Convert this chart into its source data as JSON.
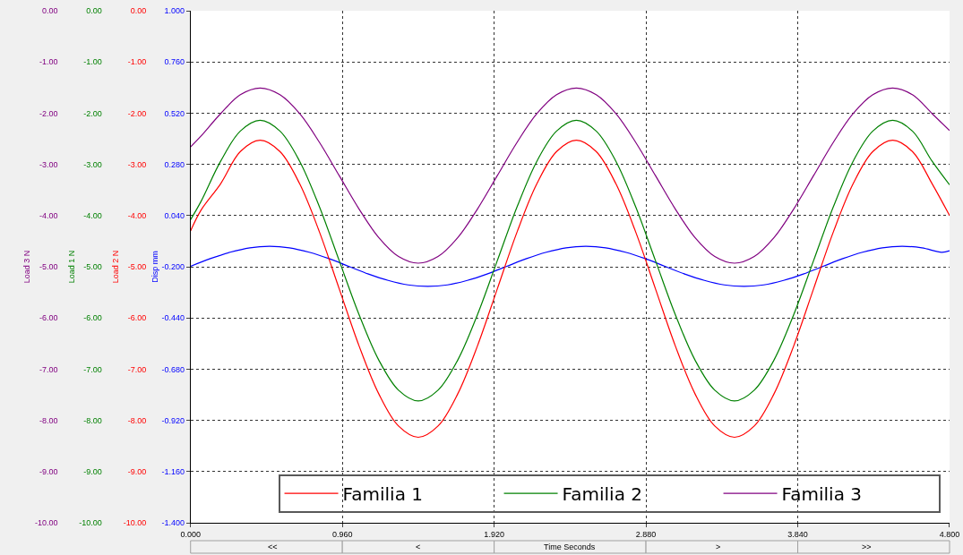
{
  "chart_data": {
    "type": "line",
    "xlabel": "Time Seconds",
    "ylabel": "Disp mm",
    "y2label": "Load 1 N",
    "y3label": "Load 2 N",
    "annotations": [
      "Load 3 N",
      "<<",
      "<",
      ">",
      ">>"
    ],
    "xlim": [
      0,
      4.8
    ],
    "xticks": [
      {
        "value": 0,
        "label": "0.000"
      },
      {
        "value": 0.96,
        "label": "0.960"
      },
      {
        "value": 1.92,
        "label": "1.920"
      },
      {
        "value": 2.88,
        "label": "2.880"
      },
      {
        "value": 3.84,
        "label": "3.840"
      },
      {
        "value": 4.8,
        "label": "4.800"
      }
    ],
    "ylim": [
      -1.4,
      1.0
    ],
    "yticks": [
      {
        "value": 1.0,
        "label": "1.000"
      },
      {
        "value": 0.76,
        "label": "0.760"
      },
      {
        "value": 0.52,
        "label": "0.520"
      },
      {
        "value": 0.28,
        "label": "0.280"
      },
      {
        "value": 0.04,
        "label": "0.040"
      },
      {
        "value": -0.2,
        "label": "-0.200"
      },
      {
        "value": -0.44,
        "label": "-0.440"
      },
      {
        "value": -0.68,
        "label": "-0.680"
      },
      {
        "value": -0.92,
        "label": "-0.920"
      },
      {
        "value": -1.16,
        "label": "-1.160"
      },
      {
        "value": -1.4,
        "label": "-1.400"
      }
    ],
    "y2lim": [
      -10,
      0
    ],
    "y2ticks": [
      {
        "value": 0,
        "label": "0.00"
      },
      {
        "value": -1,
        "label": "-1.00"
      },
      {
        "value": -2,
        "label": "-2.00"
      },
      {
        "value": -3,
        "label": "-3.00"
      },
      {
        "value": -4,
        "label": "-4.00"
      },
      {
        "value": -5,
        "label": "-5.00"
      },
      {
        "value": -6,
        "label": "-6.00"
      },
      {
        "value": -7,
        "label": "-7.00"
      },
      {
        "value": -8,
        "label": "-8.00"
      },
      {
        "value": -9,
        "label": "-9.00"
      },
      {
        "value": -10,
        "label": "-10.00"
      }
    ],
    "y3lim": [
      -10,
      0
    ],
    "y3ticks": [
      {
        "value": 0,
        "label": "0.00"
      },
      {
        "value": -1,
        "label": "-1.00"
      },
      {
        "value": -2,
        "label": "-2.00"
      },
      {
        "value": -3,
        "label": "-3.00"
      },
      {
        "value": -4,
        "label": "-4.00"
      },
      {
        "value": -5,
        "label": "-5.00"
      },
      {
        "value": -6,
        "label": "-6.00"
      },
      {
        "value": -7,
        "label": "-7.00"
      },
      {
        "value": -8,
        "label": "-8.00"
      },
      {
        "value": -9,
        "label": "-9.00"
      },
      {
        "value": -10,
        "label": "-10.00"
      }
    ],
    "grid": true,
    "legend": "bottom right",
    "marker": "none",
    "line_style": "solid",
    "series": [
      {
        "color": "#0000ff",
        "x": [
          0,
          0.125,
          0.25,
          0.375,
          0.5,
          0.625,
          0.75,
          0.875,
          1.0,
          1.125,
          1.25,
          1.375,
          1.5,
          1.625,
          1.75,
          1.875,
          2.0,
          2.125,
          2.25,
          2.375,
          2.5,
          2.625,
          2.75,
          2.875,
          3.0,
          3.125,
          3.25,
          3.375,
          3.5,
          3.625,
          3.75,
          3.875,
          4.0,
          4.125,
          4.25,
          4.375,
          4.5,
          4.625,
          4.75,
          4.8
        ],
        "values": [
          -0.198,
          -0.162,
          -0.132,
          -0.111,
          -0.104,
          -0.111,
          -0.132,
          -0.162,
          -0.198,
          -0.234,
          -0.264,
          -0.285,
          -0.292,
          -0.285,
          -0.264,
          -0.234,
          -0.198,
          -0.162,
          -0.132,
          -0.111,
          -0.104,
          -0.111,
          -0.132,
          -0.162,
          -0.198,
          -0.234,
          -0.264,
          -0.285,
          -0.292,
          -0.285,
          -0.264,
          -0.234,
          -0.198,
          -0.162,
          -0.132,
          -0.111,
          -0.104,
          -0.111,
          -0.132,
          -0.125
        ]
      },
      {
        "name": "Familia 1",
        "color": "#ff0000",
        "axis": "y3",
        "x": [
          0,
          0.065,
          0.19,
          0.315,
          0.44,
          0.565,
          0.69,
          0.815,
          0.94,
          1.065,
          1.19,
          1.315,
          1.44,
          1.565,
          1.69,
          1.815,
          1.94,
          2.065,
          2.19,
          2.315,
          2.44,
          2.565,
          2.69,
          2.815,
          2.94,
          3.065,
          3.19,
          3.315,
          3.44,
          3.565,
          3.69,
          3.815,
          3.94,
          4.065,
          4.19,
          4.315,
          4.44,
          4.565,
          4.69,
          4.8
        ],
        "values": [
          -4.3,
          -3.9,
          -3.38,
          -2.75,
          -2.53,
          -2.75,
          -3.38,
          -4.32,
          -5.43,
          -6.54,
          -7.48,
          -8.11,
          -8.33,
          -8.11,
          -7.48,
          -6.54,
          -5.43,
          -4.32,
          -3.38,
          -2.75,
          -2.53,
          -2.75,
          -3.38,
          -4.32,
          -5.43,
          -6.54,
          -7.48,
          -8.11,
          -8.33,
          -8.11,
          -7.48,
          -6.54,
          -5.43,
          -4.32,
          -3.38,
          -2.75,
          -2.53,
          -2.75,
          -3.38,
          -4.0
        ]
      },
      {
        "name": "Familia 2",
        "color": "#008000",
        "axis": "y2",
        "x": [
          0,
          0.065,
          0.19,
          0.315,
          0.44,
          0.565,
          0.69,
          0.815,
          0.94,
          1.065,
          1.19,
          1.315,
          1.44,
          1.565,
          1.69,
          1.815,
          1.94,
          2.065,
          2.19,
          2.315,
          2.44,
          2.565,
          2.69,
          2.815,
          2.94,
          3.065,
          3.19,
          3.315,
          3.44,
          3.565,
          3.69,
          3.815,
          3.94,
          4.065,
          4.19,
          4.315,
          4.44,
          4.565,
          4.69,
          4.8
        ],
        "values": [
          -4.08,
          -3.73,
          -2.94,
          -2.35,
          -2.14,
          -2.35,
          -2.94,
          -3.83,
          -4.88,
          -5.93,
          -6.82,
          -7.41,
          -7.62,
          -7.41,
          -6.82,
          -5.93,
          -4.88,
          -3.83,
          -2.94,
          -2.35,
          -2.14,
          -2.35,
          -2.94,
          -3.83,
          -4.88,
          -5.93,
          -6.82,
          -7.41,
          -7.62,
          -7.41,
          -6.82,
          -5.93,
          -4.88,
          -3.83,
          -2.94,
          -2.35,
          -2.14,
          -2.35,
          -2.94,
          -3.4
        ]
      },
      {
        "name": "Familia 3",
        "color": "#800080",
        "axis": "y3",
        "x": [
          0,
          0.065,
          0.19,
          0.315,
          0.44,
          0.565,
          0.69,
          0.815,
          0.94,
          1.065,
          1.19,
          1.315,
          1.44,
          1.565,
          1.69,
          1.815,
          1.94,
          2.065,
          2.19,
          2.315,
          2.44,
          2.565,
          2.69,
          2.815,
          2.94,
          3.065,
          3.19,
          3.315,
          3.44,
          3.565,
          3.69,
          3.815,
          3.94,
          4.065,
          4.19,
          4.315,
          4.44,
          4.565,
          4.69,
          4.8
        ],
        "values": [
          -2.66,
          -2.45,
          -2.01,
          -1.64,
          -1.51,
          -1.64,
          -2.01,
          -2.57,
          -3.22,
          -3.87,
          -4.43,
          -4.8,
          -4.93,
          -4.8,
          -4.43,
          -3.87,
          -3.22,
          -2.57,
          -2.01,
          -1.64,
          -1.51,
          -1.64,
          -2.01,
          -2.57,
          -3.22,
          -3.87,
          -4.43,
          -4.8,
          -4.93,
          -4.8,
          -4.43,
          -3.87,
          -3.22,
          -2.57,
          -2.01,
          -1.64,
          -1.51,
          -1.64,
          -2.01,
          -2.34
        ]
      }
    ]
  }
}
